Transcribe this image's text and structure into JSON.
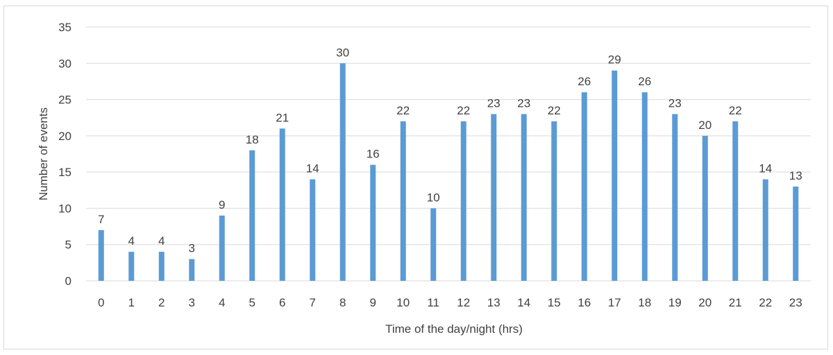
{
  "chart_data": {
    "type": "bar",
    "categories": [
      "0",
      "1",
      "2",
      "3",
      "4",
      "5",
      "6",
      "7",
      "8",
      "9",
      "10",
      "11",
      "12",
      "13",
      "14",
      "15",
      "16",
      "17",
      "18",
      "19",
      "20",
      "21",
      "22",
      "23"
    ],
    "series": [
      {
        "values": [
          7,
          4,
          4,
          3,
          9,
          18,
          21,
          14,
          30,
          16,
          22,
          10,
          22,
          23,
          23,
          22,
          26,
          29,
          26,
          23,
          20,
          22,
          14,
          13
        ]
      }
    ],
    "data_labels": [
      "7",
      "4",
      "4",
      "3",
      "9",
      "18",
      "21",
      "14",
      "30",
      "16",
      "22",
      "10",
      "22",
      "23",
      "23",
      "22",
      "26",
      "29",
      "26",
      "23",
      "20",
      "22",
      "14",
      "13"
    ],
    "xlabel": "Time of the day/night (hrs)",
    "ylabel": "Number of events",
    "ylim": [
      0,
      35
    ],
    "yticks": [
      0,
      5,
      10,
      15,
      20,
      25,
      30,
      35
    ],
    "grid": true,
    "legend": "none",
    "bar_color": "#5b9bd5"
  }
}
